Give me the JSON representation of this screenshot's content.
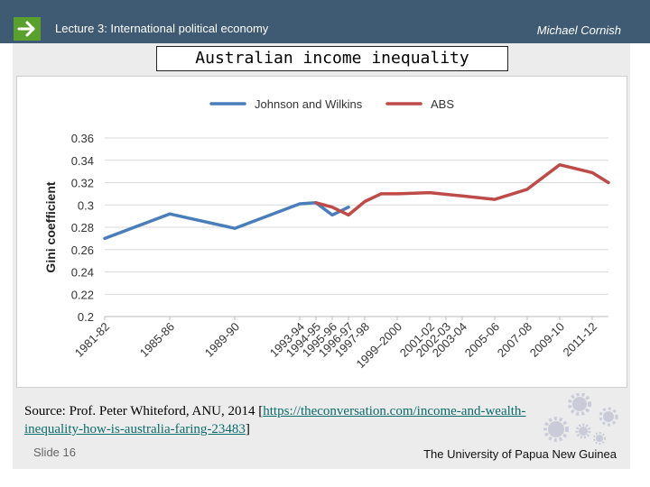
{
  "header": {
    "lecture": "Lecture 3: International political economy",
    "author": "Michael Cornish",
    "arrow_icon": "arrow-right-icon"
  },
  "title": "Australian income inequality",
  "source": {
    "prefix": "Source: Prof. Peter Whiteford, ANU, 2014 [",
    "link": "https://theconversation.com/income-and-wealth-inequality-how-is-australia-faring-23483",
    "suffix": "]"
  },
  "footer": {
    "slide": "Slide 16",
    "university": "The University of Papua New Guinea"
  },
  "colors": {
    "header_bg": "#3f5b74",
    "accent_green": "#5aa02c",
    "series_blue": "#4a7ebb",
    "series_red": "#be4b48"
  },
  "chart_data": {
    "type": "line",
    "title": "",
    "xlabel": "",
    "ylabel": "Gini coefficient",
    "ylim": [
      0.2,
      0.36
    ],
    "yticks": [
      "0.2",
      "0.22",
      "0.24",
      "0.26",
      "0.28",
      "0.3",
      "0.32",
      "0.34",
      "0.36"
    ],
    "xlim": [
      1981.5,
      2012.5
    ],
    "grid": true,
    "legend_position": "top",
    "xticks": [
      {
        "label": "1981-82",
        "x": 1981.5
      },
      {
        "label": "1985-86",
        "x": 1985.5
      },
      {
        "label": "1989-90",
        "x": 1989.5
      },
      {
        "label": "1993-94",
        "x": 1993.5
      },
      {
        "label": "1994-95",
        "x": 1994.5
      },
      {
        "label": "1995-96",
        "x": 1995.5
      },
      {
        "label": "1996-97",
        "x": 1996.5
      },
      {
        "label": "1997-98",
        "x": 1997.5
      },
      {
        "label": "1999–2000",
        "x": 1999.5
      },
      {
        "label": "2001-02",
        "x": 2001.5
      },
      {
        "label": "2002-03",
        "x": 2002.5
      },
      {
        "label": "2003-04",
        "x": 2003.5
      },
      {
        "label": "2005-06",
        "x": 2005.5
      },
      {
        "label": "2007-08",
        "x": 2007.5
      },
      {
        "label": "2009-10",
        "x": 2009.5
      },
      {
        "label": "2011-12",
        "x": 2011.5
      }
    ],
    "series": [
      {
        "name": "Johnson and Wilkins",
        "color": "#4a7ebb",
        "points": [
          [
            1981.5,
            0.27
          ],
          [
            1985.5,
            0.292
          ],
          [
            1989.5,
            0.279
          ],
          [
            1993.5,
            0.301
          ],
          [
            1994.5,
            0.302
          ],
          [
            1995.5,
            0.291
          ],
          [
            1996.5,
            0.298
          ]
        ]
      },
      {
        "name": "ABS",
        "color": "#be4b48",
        "points": [
          [
            1994.5,
            0.302
          ],
          [
            1995.5,
            0.298
          ],
          [
            1996.5,
            0.291
          ],
          [
            1997.5,
            0.303
          ],
          [
            1998.5,
            0.31
          ],
          [
            1999.5,
            0.31
          ],
          [
            2001.5,
            0.311
          ],
          [
            2003.5,
            0.308
          ],
          [
            2005.5,
            0.305
          ],
          [
            2007.5,
            0.314
          ],
          [
            2009.5,
            0.336
          ],
          [
            2011.5,
            0.329
          ],
          [
            2012.5,
            0.32
          ]
        ]
      }
    ]
  }
}
